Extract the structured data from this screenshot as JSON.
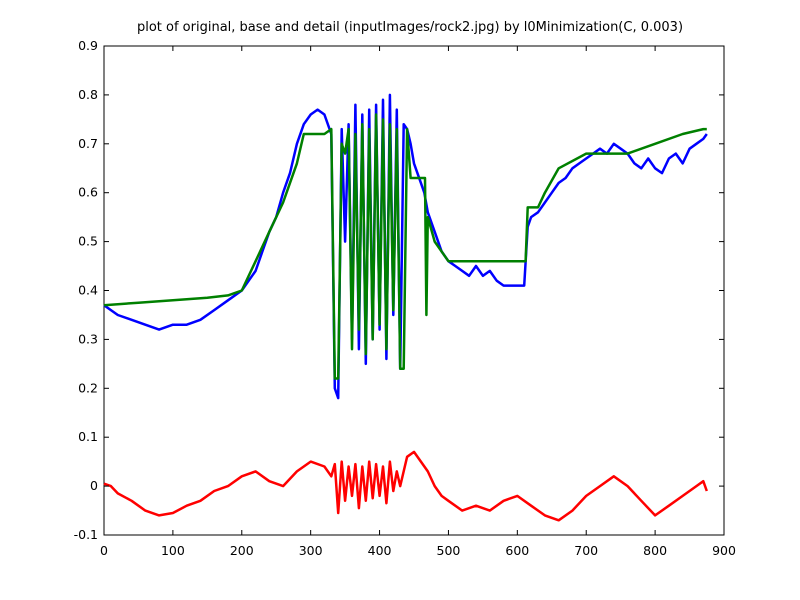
{
  "chart_data": {
    "type": "line",
    "title": "plot of original, base and detail (inputImages/rock2.jpg) by l0Minimization(C, 0.003)",
    "xlabel": "",
    "ylabel": "",
    "xlim": [
      0,
      900
    ],
    "ylim": [
      -0.1,
      0.9
    ],
    "xticks": [
      0,
      100,
      200,
      300,
      400,
      500,
      600,
      700,
      800,
      900
    ],
    "yticks": [
      -0.1,
      0,
      0.1,
      0.2,
      0.3,
      0.4,
      0.5,
      0.6,
      0.7,
      0.8,
      0.9
    ],
    "xtick_labels": [
      "0",
      "100",
      "200",
      "300",
      "400",
      "500",
      "600",
      "700",
      "800",
      "900"
    ],
    "ytick_labels": [
      "-0.1",
      "0",
      "0.1",
      "0.2",
      "0.3",
      "0.4",
      "0.5",
      "0.6",
      "0.7",
      "0.8",
      "0.9"
    ],
    "grid": false,
    "legend": "none",
    "series": [
      {
        "color": "#0000ff",
        "x": [
          0,
          10,
          20,
          40,
          60,
          80,
          100,
          120,
          140,
          160,
          180,
          200,
          210,
          220,
          230,
          240,
          250,
          260,
          270,
          280,
          290,
          300,
          310,
          320,
          330,
          335,
          340,
          345,
          350,
          355,
          360,
          365,
          370,
          375,
          380,
          385,
          390,
          395,
          400,
          405,
          410,
          415,
          420,
          425,
          430,
          435,
          440,
          445,
          450,
          455,
          460,
          465,
          470,
          480,
          490,
          500,
          510,
          520,
          530,
          540,
          550,
          560,
          570,
          580,
          590,
          600,
          610,
          615,
          620,
          630,
          640,
          650,
          660,
          670,
          680,
          690,
          700,
          710,
          720,
          730,
          740,
          750,
          760,
          770,
          780,
          790,
          800,
          810,
          820,
          830,
          840,
          850,
          860,
          870,
          875
        ],
        "values": [
          0.37,
          0.36,
          0.35,
          0.34,
          0.33,
          0.32,
          0.33,
          0.33,
          0.34,
          0.36,
          0.38,
          0.4,
          0.42,
          0.44,
          0.48,
          0.52,
          0.55,
          0.6,
          0.64,
          0.7,
          0.74,
          0.76,
          0.77,
          0.76,
          0.72,
          0.2,
          0.18,
          0.73,
          0.5,
          0.74,
          0.3,
          0.78,
          0.28,
          0.76,
          0.25,
          0.77,
          0.3,
          0.78,
          0.32,
          0.79,
          0.26,
          0.8,
          0.35,
          0.77,
          0.24,
          0.74,
          0.73,
          0.7,
          0.66,
          0.64,
          0.62,
          0.6,
          0.56,
          0.52,
          0.48,
          0.46,
          0.45,
          0.44,
          0.43,
          0.45,
          0.43,
          0.44,
          0.42,
          0.41,
          0.41,
          0.41,
          0.41,
          0.53,
          0.55,
          0.56,
          0.58,
          0.6,
          0.62,
          0.63,
          0.65,
          0.66,
          0.67,
          0.68,
          0.69,
          0.68,
          0.7,
          0.69,
          0.68,
          0.66,
          0.65,
          0.67,
          0.65,
          0.64,
          0.67,
          0.68,
          0.66,
          0.69,
          0.7,
          0.71,
          0.72
        ]
      },
      {
        "color": "#008000",
        "x": [
          0,
          50,
          100,
          150,
          180,
          200,
          220,
          240,
          260,
          270,
          280,
          290,
          300,
          320,
          330,
          335,
          340,
          345,
          350,
          355,
          360,
          365,
          370,
          375,
          380,
          385,
          390,
          395,
          400,
          405,
          410,
          415,
          420,
          425,
          430,
          435,
          440,
          445,
          450,
          460,
          466,
          468,
          470,
          480,
          500,
          550,
          600,
          612,
          615,
          630,
          640,
          660,
          700,
          760,
          800,
          840,
          870,
          875
        ],
        "values": [
          0.37,
          0.375,
          0.38,
          0.385,
          0.39,
          0.4,
          0.46,
          0.52,
          0.58,
          0.62,
          0.66,
          0.72,
          0.72,
          0.72,
          0.73,
          0.22,
          0.22,
          0.7,
          0.68,
          0.73,
          0.28,
          0.72,
          0.32,
          0.74,
          0.27,
          0.73,
          0.3,
          0.76,
          0.33,
          0.75,
          0.28,
          0.74,
          0.36,
          0.73,
          0.24,
          0.24,
          0.73,
          0.63,
          0.63,
          0.63,
          0.63,
          0.35,
          0.55,
          0.5,
          0.46,
          0.46,
          0.46,
          0.46,
          0.57,
          0.57,
          0.6,
          0.65,
          0.68,
          0.68,
          0.7,
          0.72,
          0.73,
          0.73
        ]
      },
      {
        "color": "#ff0000",
        "x": [
          0,
          10,
          20,
          40,
          60,
          80,
          100,
          120,
          140,
          160,
          180,
          200,
          220,
          240,
          260,
          280,
          300,
          320,
          330,
          335,
          340,
          345,
          350,
          355,
          360,
          365,
          370,
          375,
          380,
          385,
          390,
          395,
          400,
          405,
          410,
          415,
          420,
          425,
          430,
          440,
          450,
          460,
          470,
          480,
          490,
          500,
          520,
          540,
          560,
          580,
          600,
          620,
          640,
          660,
          680,
          700,
          720,
          740,
          760,
          780,
          800,
          820,
          840,
          860,
          870,
          875
        ],
        "values": [
          0.005,
          0.0,
          -0.015,
          -0.03,
          -0.05,
          -0.06,
          -0.055,
          -0.04,
          -0.03,
          -0.01,
          0.0,
          0.02,
          0.03,
          0.01,
          0.0,
          0.03,
          0.05,
          0.04,
          0.02,
          0.045,
          -0.055,
          0.05,
          -0.03,
          0.04,
          -0.02,
          0.045,
          -0.045,
          0.04,
          -0.03,
          0.05,
          -0.025,
          0.045,
          -0.02,
          0.04,
          -0.035,
          0.05,
          -0.01,
          0.03,
          0.0,
          0.06,
          0.07,
          0.05,
          0.03,
          0.0,
          -0.02,
          -0.03,
          -0.05,
          -0.04,
          -0.05,
          -0.03,
          -0.02,
          -0.04,
          -0.06,
          -0.07,
          -0.05,
          -0.02,
          0.0,
          0.02,
          0.0,
          -0.03,
          -0.06,
          -0.04,
          -0.02,
          0.0,
          0.01,
          -0.01
        ]
      }
    ]
  }
}
